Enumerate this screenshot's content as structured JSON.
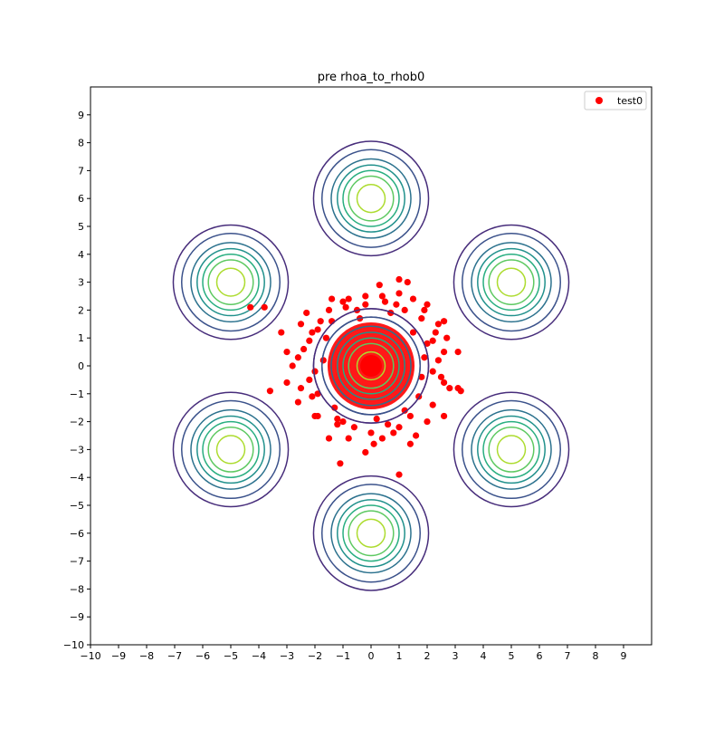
{
  "chart_data": {
    "type": "scatter",
    "title": "pre rhoa_to_rhob0",
    "xlabel": "",
    "ylabel": "",
    "xlim": [
      -10,
      10
    ],
    "ylim": [
      -10,
      10
    ],
    "xticks": [
      -10,
      -9,
      -8,
      -7,
      -6,
      -5,
      -4,
      -3,
      -2,
      -1,
      0,
      1,
      2,
      3,
      4,
      5,
      6,
      7,
      8,
      9
    ],
    "yticks": [
      -10,
      -9,
      -8,
      -7,
      -6,
      -5,
      -4,
      -3,
      -2,
      -1,
      0,
      1,
      2,
      3,
      4,
      5,
      6,
      7,
      8,
      9
    ],
    "grid": false,
    "legend": {
      "position": "top-right",
      "entries": [
        {
          "label": "test0",
          "color": "#ff0000",
          "marker": "circle"
        }
      ]
    },
    "contours": {
      "description_colormap": "viridis",
      "level_radii": [
        2.05,
        1.75,
        1.42,
        1.2,
        1.0,
        0.8,
        0.5
      ],
      "level_colors": [
        "#472d7b",
        "#3b528b",
        "#2c728e",
        "#21918c",
        "#28ae80",
        "#5ec962",
        "#addc30"
      ],
      "centers": [
        {
          "x": 0,
          "y": 6
        },
        {
          "x": 5,
          "y": 3
        },
        {
          "x": 5,
          "y": -3
        },
        {
          "x": 0,
          "y": -6
        },
        {
          "x": -5,
          "y": -3
        },
        {
          "x": -5,
          "y": 3
        },
        {
          "x": 0,
          "y": 0
        }
      ]
    },
    "series": [
      {
        "name": "test0",
        "color": "#ff0000",
        "marker": "circle",
        "points": [
          [
            0.3,
            2.9
          ],
          [
            1.0,
            3.1
          ],
          [
            1.3,
            3.0
          ],
          [
            -1.0,
            2.3
          ],
          [
            -0.8,
            2.4
          ],
          [
            -0.2,
            2.5
          ],
          [
            0.4,
            2.5
          ],
          [
            1.5,
            2.4
          ],
          [
            2.0,
            2.2
          ],
          [
            -1.5,
            2.0
          ],
          [
            -1.8,
            1.6
          ],
          [
            -3.2,
            1.2
          ],
          [
            -2.5,
            1.5
          ],
          [
            -1.9,
            1.3
          ],
          [
            2.4,
            1.5
          ],
          [
            2.6,
            1.6
          ],
          [
            1.8,
            1.7
          ],
          [
            -3.8,
            2.1
          ],
          [
            -2.2,
            0.9
          ],
          [
            -3.0,
            0.5
          ],
          [
            -2.6,
            0.3
          ],
          [
            -2.8,
            0.0
          ],
          [
            -2.2,
            -0.5
          ],
          [
            -3.0,
            -0.6
          ],
          [
            -3.6,
            -0.9
          ],
          [
            -2.5,
            -0.8
          ],
          [
            -2.1,
            -1.1
          ],
          [
            -1.9,
            -1.8
          ],
          [
            -1.2,
            -2.1
          ],
          [
            -0.8,
            -2.6
          ],
          [
            -0.2,
            -3.1
          ],
          [
            0.1,
            -2.8
          ],
          [
            0.4,
            -2.6
          ],
          [
            0.8,
            -2.4
          ],
          [
            1.4,
            -2.8
          ],
          [
            2.0,
            -2.0
          ],
          [
            2.6,
            -1.8
          ],
          [
            2.2,
            -1.4
          ],
          [
            2.8,
            -0.8
          ],
          [
            3.1,
            -0.8
          ],
          [
            3.2,
            -0.9
          ],
          [
            2.6,
            -0.6
          ],
          [
            2.4,
            0.2
          ],
          [
            2.6,
            0.5
          ],
          [
            3.1,
            0.5
          ],
          [
            2.7,
            1.0
          ],
          [
            2.2,
            0.9
          ],
          [
            -1.1,
            -3.5
          ],
          [
            1.0,
            -3.9
          ],
          [
            -1.5,
            -2.6
          ],
          [
            -2.0,
            -1.8
          ],
          [
            -0.6,
            -2.2
          ],
          [
            0.6,
            -2.1
          ],
          [
            1.6,
            -2.5
          ],
          [
            2.3,
            1.2
          ],
          [
            1.9,
            2.0
          ],
          [
            1.0,
            2.6
          ],
          [
            -0.5,
            2.0
          ],
          [
            -2.3,
            1.9
          ],
          [
            -1.4,
            1.6
          ],
          [
            -1.7,
            0.2
          ],
          [
            -2.0,
            -0.2
          ],
          [
            1.8,
            -0.4
          ],
          [
            1.9,
            0.3
          ],
          [
            2.2,
            -0.2
          ],
          [
            -1.3,
            -1.5
          ],
          [
            1.2,
            -1.6
          ],
          [
            0.0,
            -2.4
          ],
          [
            -0.4,
            1.7
          ],
          [
            0.7,
            1.9
          ],
          [
            1.5,
            1.2
          ],
          [
            -1.6,
            1.0
          ],
          [
            -1.9,
            -1.0
          ],
          [
            1.7,
            -1.1
          ],
          [
            0.2,
            -1.9
          ],
          [
            -0.9,
            2.1
          ],
          [
            0.9,
            2.2
          ],
          [
            -2.4,
            0.6
          ],
          [
            2.5,
            -0.4
          ],
          [
            -0.2,
            2.2
          ],
          [
            1.2,
            2.0
          ],
          [
            -2.6,
            -1.3
          ],
          [
            -1.0,
            -2.0
          ],
          [
            1.0,
            -2.2
          ],
          [
            -1.4,
            2.4
          ],
          [
            0.5,
            2.3
          ],
          [
            -2.1,
            1.2
          ],
          [
            2.0,
            0.8
          ],
          [
            -1.2,
            -1.9
          ],
          [
            1.4,
            -1.8
          ],
          [
            -4.3,
            2.1
          ]
        ]
      }
    ]
  }
}
